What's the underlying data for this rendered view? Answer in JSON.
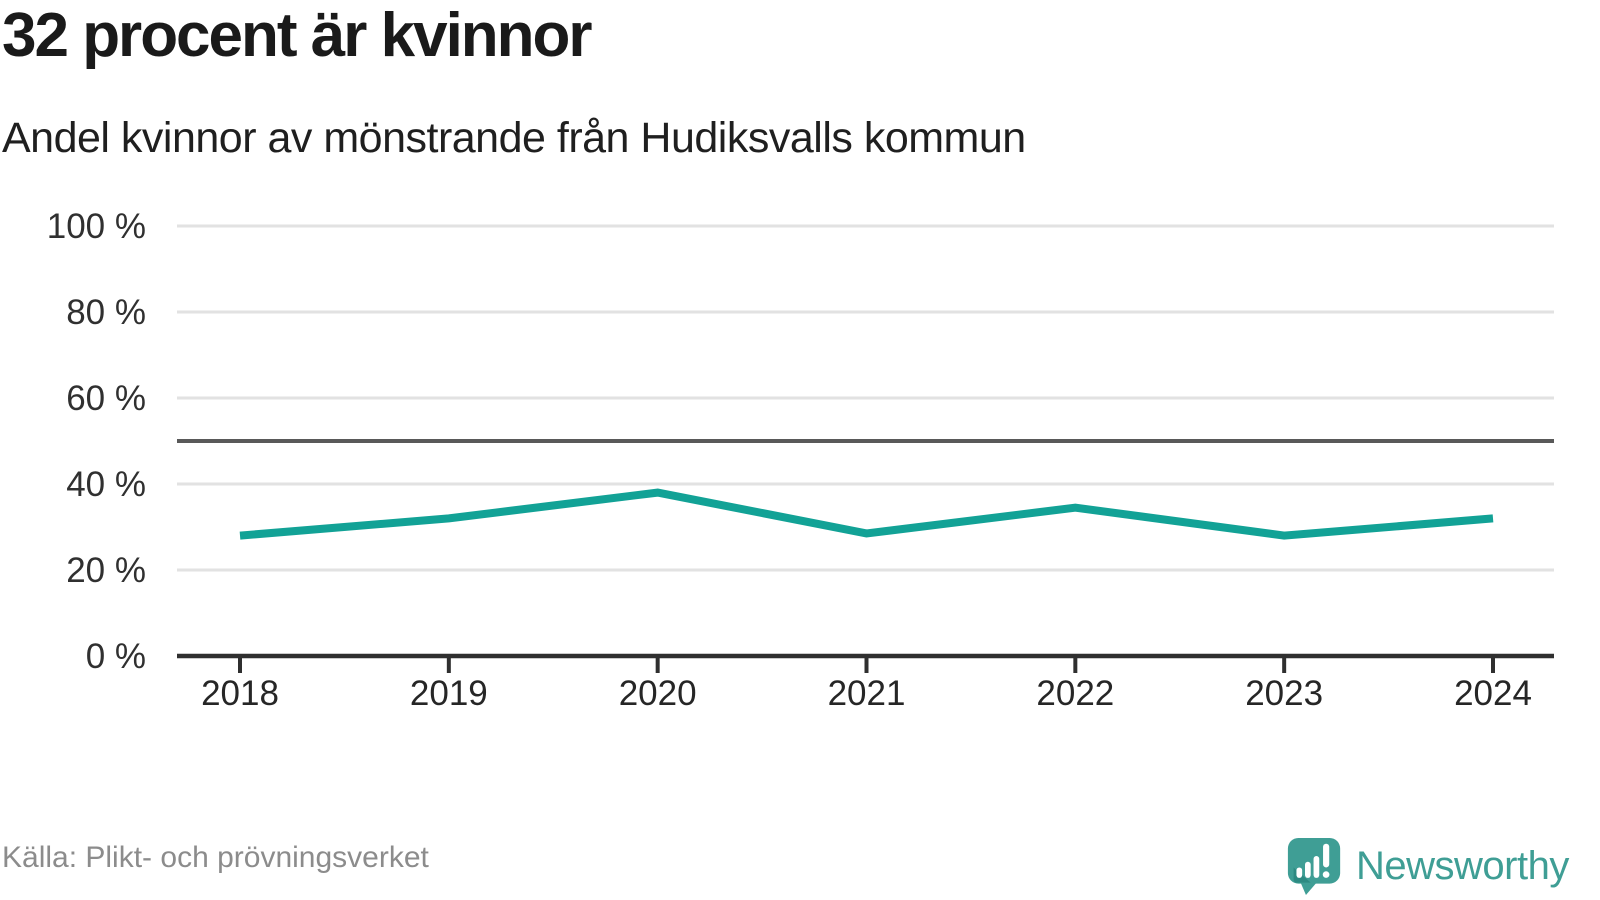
{
  "header": {
    "title": "32 procent är kvinnor",
    "subtitle": "Andel kvinnor av mönstrande från Hudiksvalls kommun"
  },
  "footer": {
    "source": "Källa: Plikt- och prövningsverket",
    "brand": "Newsworthy"
  },
  "colors": {
    "line": "#12a296",
    "brand_teal": "#3f9e95",
    "reference_line": "#595959",
    "grid": "#e2e2e2",
    "axis": "#2f2f2f",
    "title_text": "#1a1a1a",
    "muted_text": "#8c8c8c"
  },
  "chart_data": {
    "type": "line",
    "title": "32 procent är kvinnor",
    "subtitle": "Andel kvinnor av mönstrande från Hudiksvalls kommun",
    "x": [
      "2018",
      "2019",
      "2020",
      "2021",
      "2022",
      "2023",
      "2024"
    ],
    "series": [
      {
        "name": "Andel kvinnor av mönstrande",
        "values": [
          28,
          32,
          38,
          28.5,
          34.5,
          28,
          32
        ]
      }
    ],
    "unit": "%",
    "ylim": [
      0,
      100
    ],
    "yticks": [
      0,
      20,
      40,
      60,
      80,
      100
    ],
    "ytick_format": "{v} %",
    "reference_line": 50,
    "grid": "horizontal",
    "legend": "none",
    "source": "Källa: Plikt- och prövningsverket"
  }
}
